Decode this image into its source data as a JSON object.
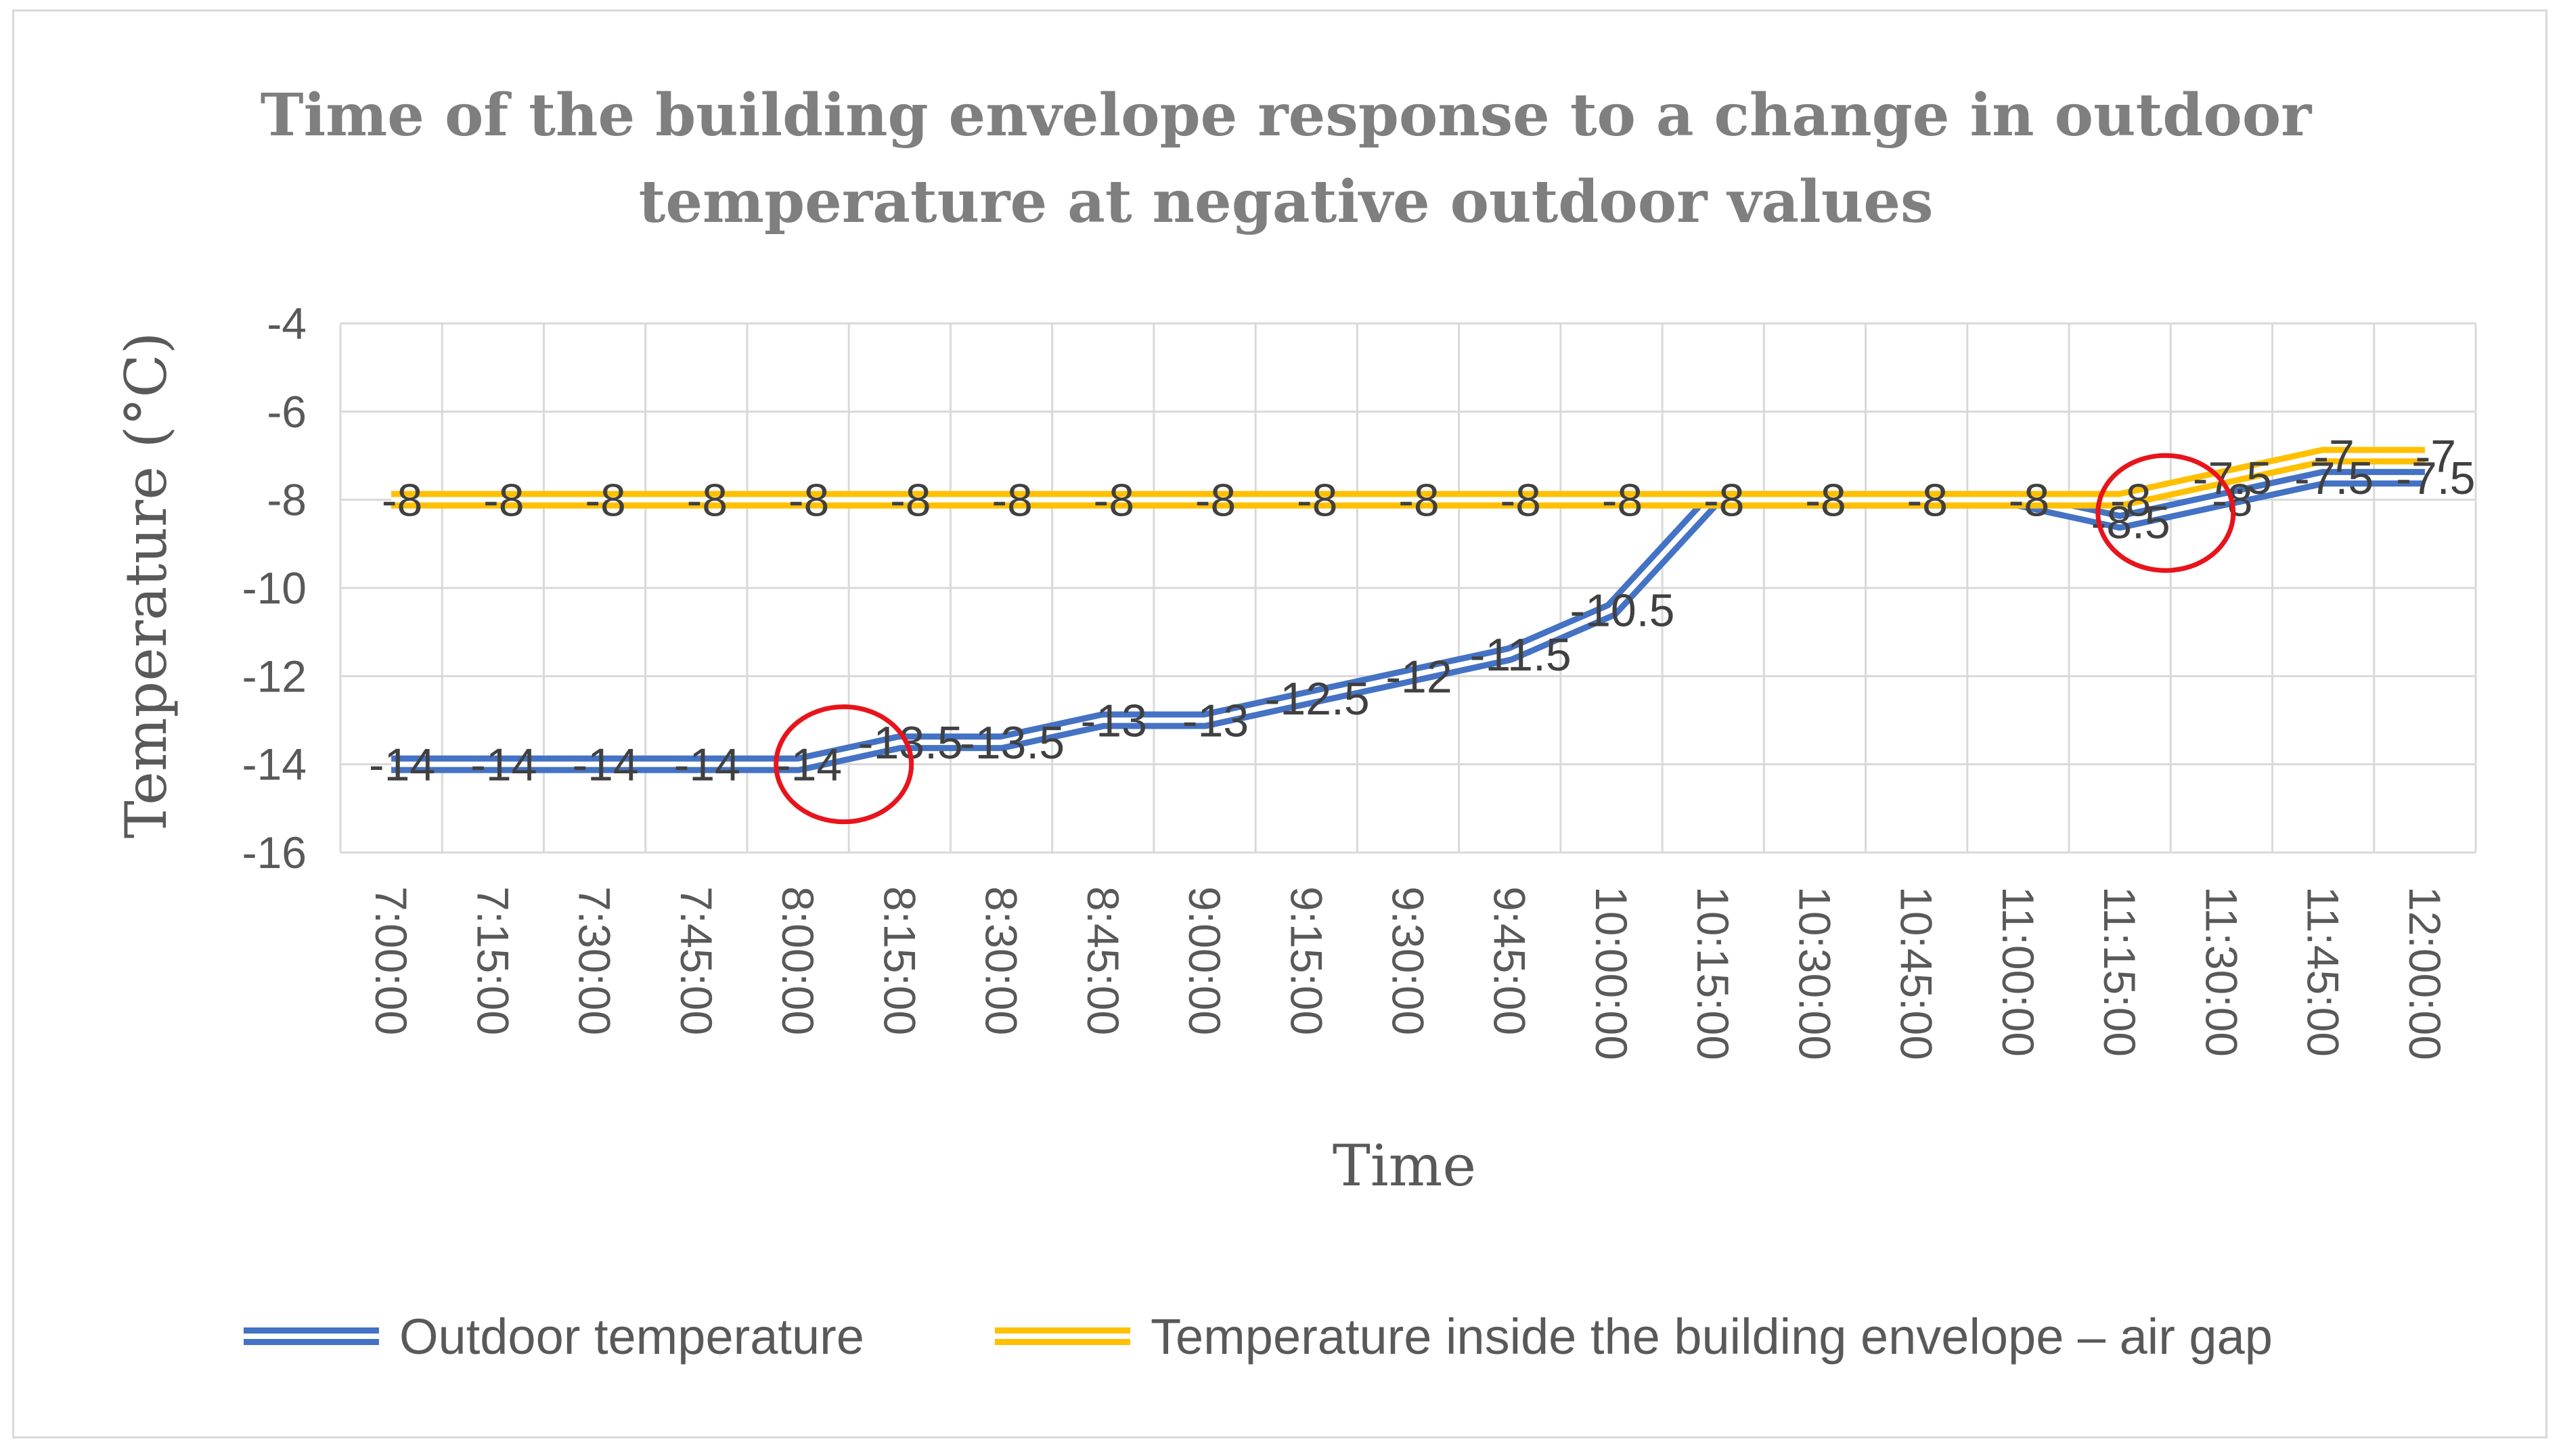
{
  "chart_data": {
    "type": "line",
    "title_lines": [
      "Time of the building envelope response to a change in outdoor",
      "temperature at negative outdoor values"
    ],
    "xlabel": "Time",
    "ylabel": "Temperature (°C)",
    "ylim": [
      -16,
      -4
    ],
    "yticks": [
      -4,
      -6,
      -8,
      -10,
      -12,
      -14,
      -16
    ],
    "grid": true,
    "legend_position": "bottom",
    "categories": [
      "7:00:00",
      "7:15:00",
      "7:30:00",
      "7:45:00",
      "8:00:00",
      "8:15:00",
      "8:30:00",
      "8:45:00",
      "9:00:00",
      "9:15:00",
      "9:30:00",
      "9:45:00",
      "10:00:00",
      "10:15:00",
      "10:30:00",
      "10:45:00",
      "11:00:00",
      "11:15:00",
      "11:30:00",
      "11:45:00",
      "12:00:00"
    ],
    "series": [
      {
        "name": "Outdoor temperature",
        "color": "#4472c4",
        "values": [
          -14,
          -14,
          -14,
          -14,
          -14,
          -13.5,
          -13.5,
          -13,
          -13,
          -12.5,
          -12,
          -11.5,
          -10.5,
          -8,
          -8,
          -8,
          -8,
          -8.5,
          -8,
          -7.5,
          -7.5
        ],
        "labels": [
          "-14",
          "-14",
          "-14",
          "-14",
          "-14",
          "-13.5",
          "-13.5",
          "-13",
          "-13",
          "-12.5",
          "-12",
          "-11.5",
          "-10.5",
          "-8",
          "-8",
          "-8",
          "-8",
          "-8.5",
          "-8",
          "-7.5",
          "-7.5"
        ]
      },
      {
        "name": "Temperature inside the building envelope – air gap",
        "color": "#ffc000",
        "values": [
          -8,
          -8,
          -8,
          -8,
          -8,
          -8,
          -8,
          -8,
          -8,
          -8,
          -8,
          -8,
          -8,
          -8,
          -8,
          -8,
          -8,
          -8,
          -7.5,
          -7,
          -7
        ],
        "labels": [
          "-8",
          "-8",
          "-8",
          "-8",
          "-8",
          "-8",
          "-8",
          "-8",
          "-8",
          "-8",
          "-8",
          "-8",
          "-8",
          "-8",
          "-8",
          "-8",
          "-8",
          "-8",
          "-7.5",
          "-7",
          "-7"
        ]
      }
    ],
    "annotations": [
      {
        "type": "circle",
        "color": "#e8141c",
        "x_category": "8:00:00",
        "y_value": -14
      },
      {
        "type": "circle",
        "color": "#e8141c",
        "x_category": "11:15:00",
        "y_value": -8.3
      }
    ]
  }
}
